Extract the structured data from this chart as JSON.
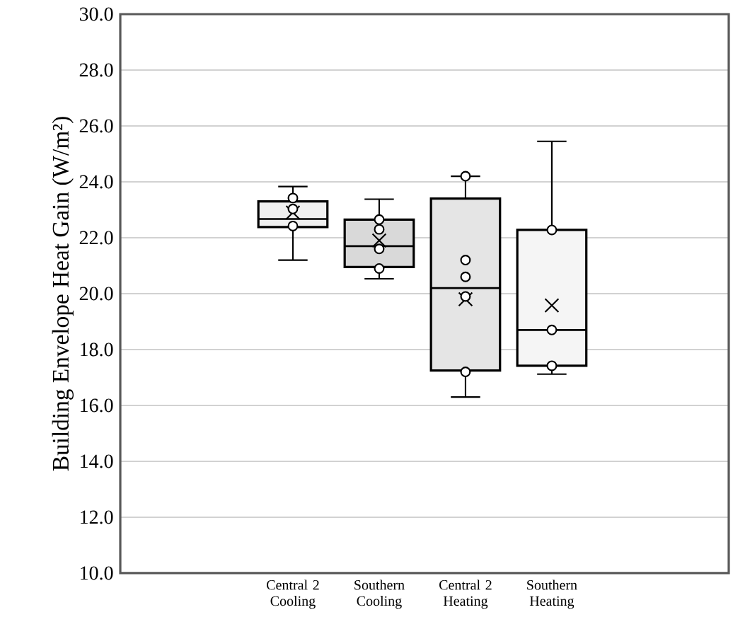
{
  "chart_data": {
    "type": "box",
    "ylabel": "Building Envelope Heat Gain (W/m²)",
    "categories": [
      "Central 2 Cooling",
      "Southern Cooling",
      "Central 2 Heating",
      "Southern Heating"
    ],
    "colors": [
      "#f0f0f0",
      "#d9d9d9",
      "#e5e5e5",
      "#f5f5f5"
    ],
    "boxes": [
      {
        "low": 21.2,
        "q1": 22.38,
        "median": 22.67,
        "q3": 23.3,
        "high": 23.83,
        "mean": 22.9
      },
      {
        "low": 20.53,
        "q1": 20.95,
        "median": 21.7,
        "q3": 22.65,
        "high": 23.38,
        "mean": 21.9
      },
      {
        "low": 16.3,
        "q1": 17.25,
        "median": 20.2,
        "q3": 23.4,
        "high": 24.2,
        "mean": 19.8
      },
      {
        "low": 17.12,
        "q1": 17.42,
        "median": 18.7,
        "q3": 22.28,
        "high": 25.45,
        "mean": 19.58
      }
    ],
    "series": [
      {
        "type": "scatter",
        "marker": "circle",
        "color": "#000000",
        "x": [
          "Central 2 Cooling",
          "Central 2 Cooling",
          "Central 2 Cooling",
          "Southern Cooling",
          "Southern Cooling",
          "Southern Cooling",
          "Southern Cooling",
          "Central 2 Heating",
          "Central 2 Heating",
          "Central 2 Heating",
          "Central 2 Heating",
          "Central 2 Heating",
          "Southern Heating",
          "Southern Heating",
          "Southern Heating"
        ],
        "values": [
          23.42,
          23.03,
          22.42,
          22.65,
          22.3,
          21.6,
          20.9,
          24.2,
          21.2,
          20.6,
          19.9,
          17.2,
          22.28,
          18.7,
          17.42
        ]
      }
    ],
    "ylim": [
      10,
      30
    ],
    "yticks": [
      {
        "value": 10,
        "label": "10.0"
      },
      {
        "value": 12,
        "label": "12.0"
      },
      {
        "value": 14,
        "label": "14.0"
      },
      {
        "value": 16,
        "label": "16.0"
      },
      {
        "value": 18,
        "label": "18.0"
      },
      {
        "value": 20,
        "label": "20.0"
      },
      {
        "value": 22,
        "label": "22.0"
      },
      {
        "value": 24,
        "label": "24.0"
      },
      {
        "value": 26,
        "label": "26.0"
      },
      {
        "value": 28,
        "label": "28.0"
      },
      {
        "value": 30,
        "label": "30.0"
      }
    ],
    "grid": "y"
  }
}
